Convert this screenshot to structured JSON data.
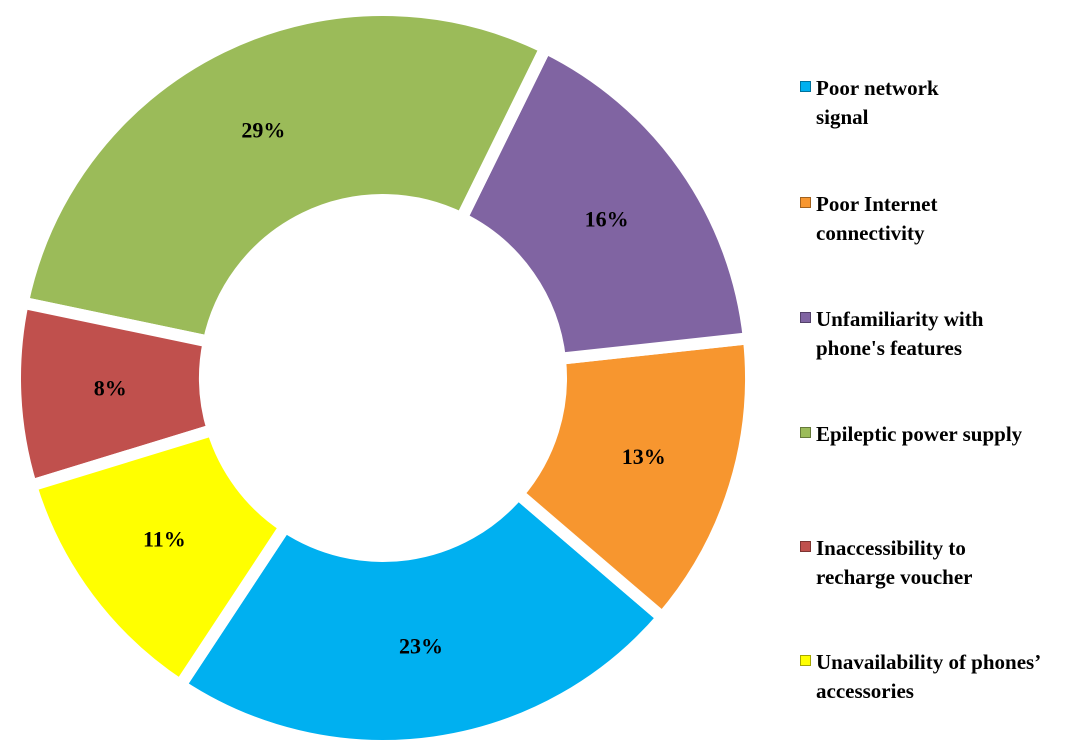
{
  "chart_data": {
    "type": "donut",
    "series": [
      {
        "name": "Poor network signal",
        "color": "#00b0f0",
        "values": [
          23
        ],
        "value_labels": [
          "23%"
        ]
      },
      {
        "name": "Poor Internet connectivity",
        "color": "#f7962f",
        "values": [
          13
        ],
        "value_labels": [
          "13%"
        ]
      },
      {
        "name": "Unfamiliarity with phone's features",
        "color": "#8064a2",
        "values": [
          16
        ],
        "value_labels": [
          "16%"
        ]
      },
      {
        "name": "Epileptic power supply",
        "color": "#9bbb59",
        "values": [
          29
        ],
        "value_labels": [
          "29%"
        ]
      },
      {
        "name": "Inaccessibility to recharge voucher",
        "color": "#c0504d",
        "values": [
          8
        ],
        "value_labels": [
          "8%"
        ]
      },
      {
        "name": "Unavailability of phones’ accessories",
        "color": "#ffff00",
        "values": [
          11
        ],
        "value_labels": [
          "11%"
        ]
      }
    ],
    "legend": "right"
  }
}
